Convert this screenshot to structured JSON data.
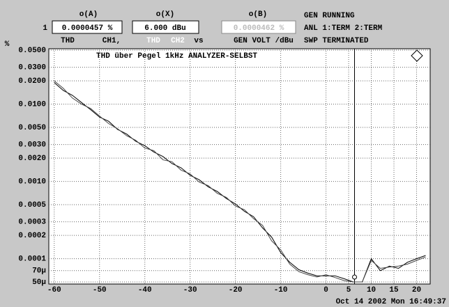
{
  "header": {
    "cols": [
      "o(A)",
      "o(X)",
      "o(B)"
    ],
    "row": "1",
    "readings": [
      "0.0000457 %",
      "6.000 dBu",
      "0.0000462 %"
    ],
    "trace_label": [
      "THD",
      "CH1,",
      "THD",
      "CH2",
      "vs",
      "GEN VOLT /dBu"
    ],
    "unit": "%",
    "status": [
      "GEN RUNNING",
      "ANL 1:TERM 2:TERM",
      "SWP TERMINATED"
    ]
  },
  "footer": "Oct 14 2002 Mon 16:49:37",
  "chart_data": {
    "type": "line",
    "title": "THD über Pegel 1kHz ANALYZER-SELBST",
    "log_y": true,
    "grid": true,
    "cursor_x": 6.3,
    "xlim": [
      -61.2,
      23
    ],
    "ylim": [
      5e-05,
      0.05
    ],
    "xticks": [
      -60,
      -50,
      -40,
      -30,
      -20,
      -10,
      0,
      5,
      10,
      15,
      20
    ],
    "yticks": [
      {
        "value": 0.05,
        "label": "0.0500"
      },
      {
        "value": 0.03,
        "label": "0.0300"
      },
      {
        "value": 0.02,
        "label": "0.0200"
      },
      {
        "value": 0.01,
        "label": "0.0100"
      },
      {
        "value": 0.005,
        "label": "0.0050"
      },
      {
        "value": 0.003,
        "label": "0.0030"
      },
      {
        "value": 0.002,
        "label": "0.0020"
      },
      {
        "value": 0.001,
        "label": "0.0010"
      },
      {
        "value": 0.0005,
        "label": "0.0005"
      },
      {
        "value": 0.0003,
        "label": "0.0003"
      },
      {
        "value": 0.0002,
        "label": "0.0002"
      },
      {
        "value": 0.0001,
        "label": "0.0001"
      },
      {
        "value": 7e-05,
        "label": "70µ"
      },
      {
        "value": 5e-05,
        "label": "50µ"
      }
    ],
    "x": [
      -60,
      -58,
      -56,
      -54,
      -52,
      -50,
      -48,
      -46,
      -44,
      -42,
      -40,
      -38,
      -36,
      -34,
      -32,
      -30,
      -28,
      -26,
      -24,
      -22,
      -20,
      -18,
      -16,
      -14,
      -12,
      -10,
      -8,
      -6,
      -4,
      -2,
      0,
      2,
      4,
      6,
      8,
      10,
      12,
      14,
      16,
      18,
      20,
      22
    ],
    "series": [
      {
        "name": "CH1",
        "color": "#000000",
        "values": [
          0.019,
          0.015,
          0.013,
          0.0105,
          0.0085,
          0.0068,
          0.006,
          0.0047,
          0.0041,
          0.0033,
          0.0029,
          0.0024,
          0.0021,
          0.0017,
          0.0015,
          0.0012,
          0.00105,
          0.00085,
          0.00074,
          0.0006,
          0.00051,
          0.00041,
          0.00035,
          0.00025,
          0.00019,
          0.00012,
          9e-05,
          7.2e-05,
          6.5e-05,
          6e-05,
          6e-05,
          6e-05,
          5.5e-05,
          5e-05,
          5e-05,
          0.0001,
          7e-05,
          8e-05,
          7.5e-05,
          9e-05,
          0.0001,
          0.00011
        ]
      },
      {
        "name": "CH2",
        "color": "#444444",
        "values": [
          0.02,
          0.016,
          0.012,
          0.01,
          0.0088,
          0.007,
          0.0056,
          0.0048,
          0.0039,
          0.0034,
          0.0027,
          0.0025,
          0.0019,
          0.0018,
          0.0014,
          0.00125,
          0.00098,
          0.00088,
          0.0007,
          0.00062,
          0.00048,
          0.00043,
          0.00033,
          0.00027,
          0.00017,
          0.00013,
          8.5e-05,
          6.8e-05,
          6.2e-05,
          5.8e-05,
          6.2e-05,
          5.7e-05,
          5.2e-05,
          5e-05,
          5e-05,
          9.5e-05,
          7.5e-05,
          7.8e-05,
          8e-05,
          8.5e-05,
          9.5e-05,
          0.000105
        ]
      }
    ]
  }
}
